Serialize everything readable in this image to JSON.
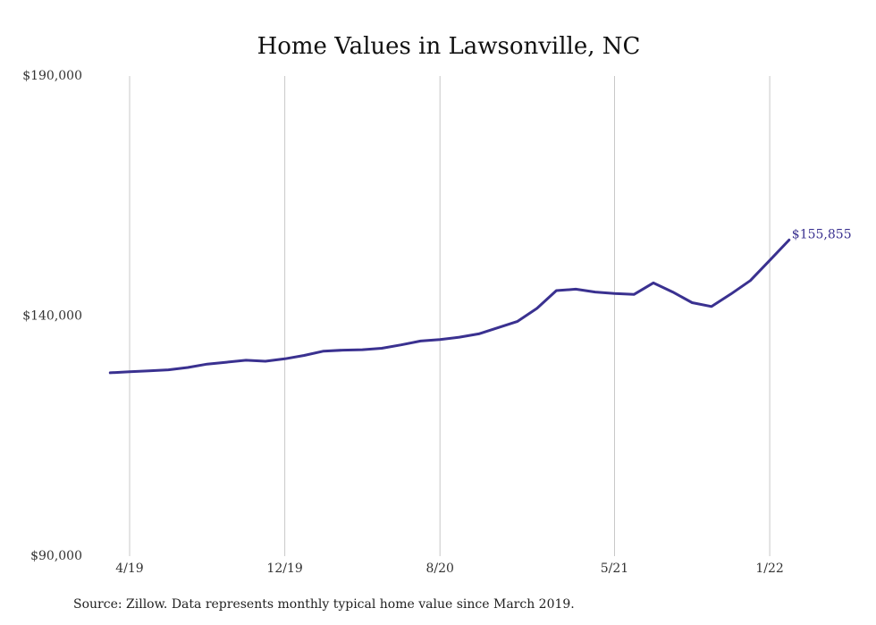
{
  "chart_data": {
    "type": "line",
    "title": "Home Values in Lawsonville, NC",
    "xlabel": "",
    "ylabel": "",
    "ylim": [
      90000,
      190000
    ],
    "y_ticks": [
      {
        "value": 190000,
        "label": "$190,000"
      },
      {
        "value": 140000,
        "label": "$140,000"
      },
      {
        "value": 90000,
        "label": "$90,000"
      }
    ],
    "x_ticks": [
      {
        "label": "4/19",
        "date": "2019-04"
      },
      {
        "label": "12/19",
        "date": "2019-12"
      },
      {
        "label": "8/20",
        "date": "2020-08"
      },
      {
        "label": "5/21",
        "date": "2021-05"
      },
      {
        "label": "1/22",
        "date": "2022-01"
      }
    ],
    "grid": {
      "vertical": true,
      "horizontal": false
    },
    "series": [
      {
        "name": "",
        "color": "#3a3190",
        "points": [
          {
            "x": "2019-03",
            "y": 128200
          },
          {
            "x": "2019-04",
            "y": 128400
          },
          {
            "x": "2019-05",
            "y": 128600
          },
          {
            "x": "2019-06",
            "y": 128800
          },
          {
            "x": "2019-07",
            "y": 129300
          },
          {
            "x": "2019-08",
            "y": 130000
          },
          {
            "x": "2019-09",
            "y": 130400
          },
          {
            "x": "2019-10",
            "y": 130800
          },
          {
            "x": "2019-11",
            "y": 130600
          },
          {
            "x": "2019-12",
            "y": 131100
          },
          {
            "x": "2020-01",
            "y": 131800
          },
          {
            "x": "2020-02",
            "y": 132700
          },
          {
            "x": "2020-03",
            "y": 132900
          },
          {
            "x": "2020-04",
            "y": 133000
          },
          {
            "x": "2020-05",
            "y": 133300
          },
          {
            "x": "2020-06",
            "y": 134000
          },
          {
            "x": "2020-07",
            "y": 134800
          },
          {
            "x": "2020-08",
            "y": 135100
          },
          {
            "x": "2020-09",
            "y": 135600
          },
          {
            "x": "2020-10",
            "y": 136300
          },
          {
            "x": "2020-11",
            "y": 137600
          },
          {
            "x": "2020-12",
            "y": 138900
          },
          {
            "x": "2021-01",
            "y": 141600
          },
          {
            "x": "2021-02",
            "y": 145300
          },
          {
            "x": "2021-03",
            "y": 145600
          },
          {
            "x": "2021-04",
            "y": 145000
          },
          {
            "x": "2021-05",
            "y": 144700
          },
          {
            "x": "2021-06",
            "y": 144500
          },
          {
            "x": "2021-07",
            "y": 146900
          },
          {
            "x": "2021-08",
            "y": 145000
          },
          {
            "x": "2021-09",
            "y": 142800
          },
          {
            "x": "2021-10",
            "y": 142000
          },
          {
            "x": "2021-11",
            "y": 144600
          },
          {
            "x": "2021-12",
            "y": 147400
          },
          {
            "x": "2022-01",
            "y": 151600
          },
          {
            "x": "2022-02",
            "y": 155855
          }
        ],
        "end_label": "$155,855"
      }
    ]
  },
  "footer": {
    "source": "Source: Zillow. Data represents monthly typical home value since March 2019."
  }
}
